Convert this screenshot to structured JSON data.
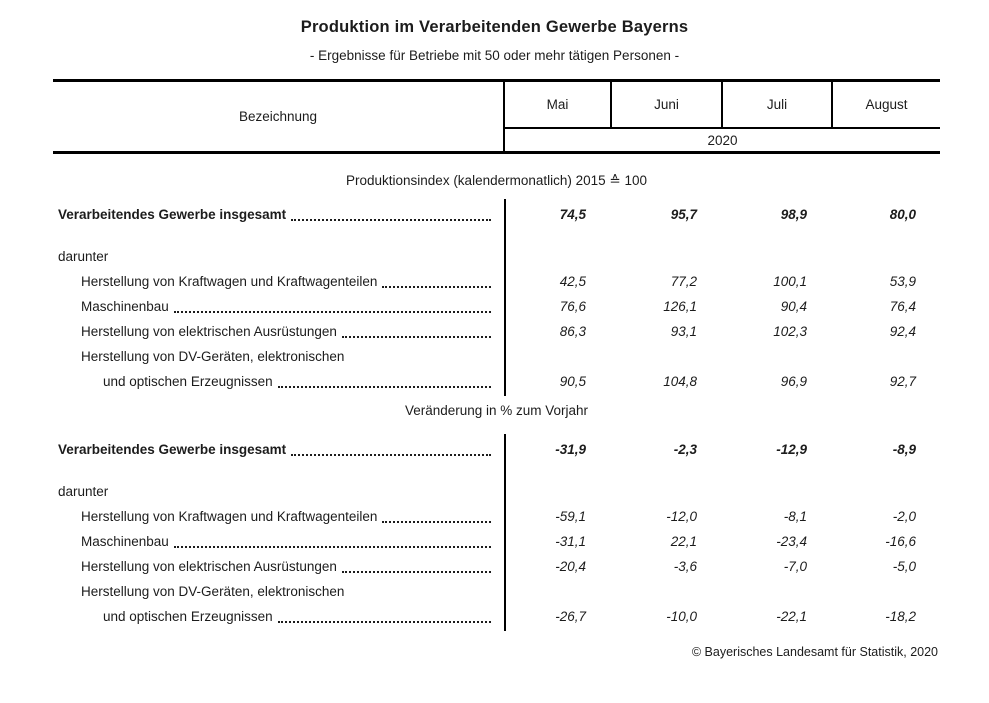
{
  "title": "Produktion im Verarbeitenden Gewerbe Bayerns",
  "subtitle": "- Ergebnisse für Betriebe mit 50 oder mehr tätigen Personen -",
  "table": {
    "header": {
      "label_col": "Bezeichnung",
      "months": [
        "Mai",
        "Juni",
        "Juli",
        "August"
      ],
      "year": "2020"
    },
    "sections": [
      {
        "title": "Produktionsindex (kalendermonatlich) 2015 ≙ 100",
        "rows": [
          {
            "label": "Verarbeitendes Gewerbe insgesamt",
            "bold": true,
            "leader": true,
            "indent": 0,
            "gap_above": false,
            "values": [
              "74,5",
              "95,7",
              "98,9",
              "80,0"
            ]
          },
          {
            "label": "darunter",
            "bold": false,
            "leader": false,
            "indent": 0,
            "gap_above": true,
            "values": null
          },
          {
            "label": "Herstellung von Kraftwagen und Kraftwagenteilen",
            "bold": false,
            "leader": true,
            "indent": 1,
            "gap_above": false,
            "values": [
              "42,5",
              "77,2",
              "100,1",
              "53,9"
            ]
          },
          {
            "label": "Maschinenbau",
            "bold": false,
            "leader": true,
            "indent": 1,
            "gap_above": false,
            "values": [
              "76,6",
              "126,1",
              "90,4",
              "76,4"
            ]
          },
          {
            "label": "Herstellung von elektrischen Ausrüstungen",
            "bold": false,
            "leader": true,
            "indent": 1,
            "gap_above": false,
            "values": [
              "86,3",
              "93,1",
              "102,3",
              "92,4"
            ]
          },
          {
            "label": "Herstellung von DV-Geräten, elektronischen",
            "bold": false,
            "leader": false,
            "indent": 1,
            "gap_above": false,
            "values": null
          },
          {
            "label": "und optischen Erzeugnissen",
            "bold": false,
            "leader": true,
            "indent": 2,
            "gap_above": false,
            "values": [
              "90,5",
              "104,8",
              "96,9",
              "92,7"
            ]
          }
        ]
      },
      {
        "title": "Veränderung in % zum Vorjahr",
        "rows": [
          {
            "label": "Verarbeitendes Gewerbe insgesamt",
            "bold": true,
            "leader": true,
            "indent": 0,
            "gap_above": false,
            "values": [
              "-31,9",
              "-2,3",
              "-12,9",
              "-8,9"
            ]
          },
          {
            "label": "darunter",
            "bold": false,
            "leader": false,
            "indent": 0,
            "gap_above": true,
            "values": null
          },
          {
            "label": "Herstellung von Kraftwagen und Kraftwagenteilen",
            "bold": false,
            "leader": true,
            "indent": 1,
            "gap_above": false,
            "values": [
              "-59,1",
              "-12,0",
              "-8,1",
              "-2,0"
            ]
          },
          {
            "label": "Maschinenbau",
            "bold": false,
            "leader": true,
            "indent": 1,
            "gap_above": false,
            "values": [
              "-31,1",
              "22,1",
              "-23,4",
              "-16,6"
            ]
          },
          {
            "label": "Herstellung von elektrischen Ausrüstungen",
            "bold": false,
            "leader": true,
            "indent": 1,
            "gap_above": false,
            "values": [
              "-20,4",
              "-3,6",
              "-7,0",
              "-5,0"
            ]
          },
          {
            "label": "Herstellung von DV-Geräten, elektronischen",
            "bold": false,
            "leader": false,
            "indent": 1,
            "gap_above": false,
            "values": null
          },
          {
            "label": "und optischen Erzeugnissen",
            "bold": false,
            "leader": true,
            "indent": 2,
            "gap_above": false,
            "values": [
              "-26,7",
              "-10,0",
              "-22,1",
              "-18,2"
            ]
          }
        ]
      }
    ]
  },
  "footer": "© Bayerisches Landesamt für Statistik, 2020"
}
